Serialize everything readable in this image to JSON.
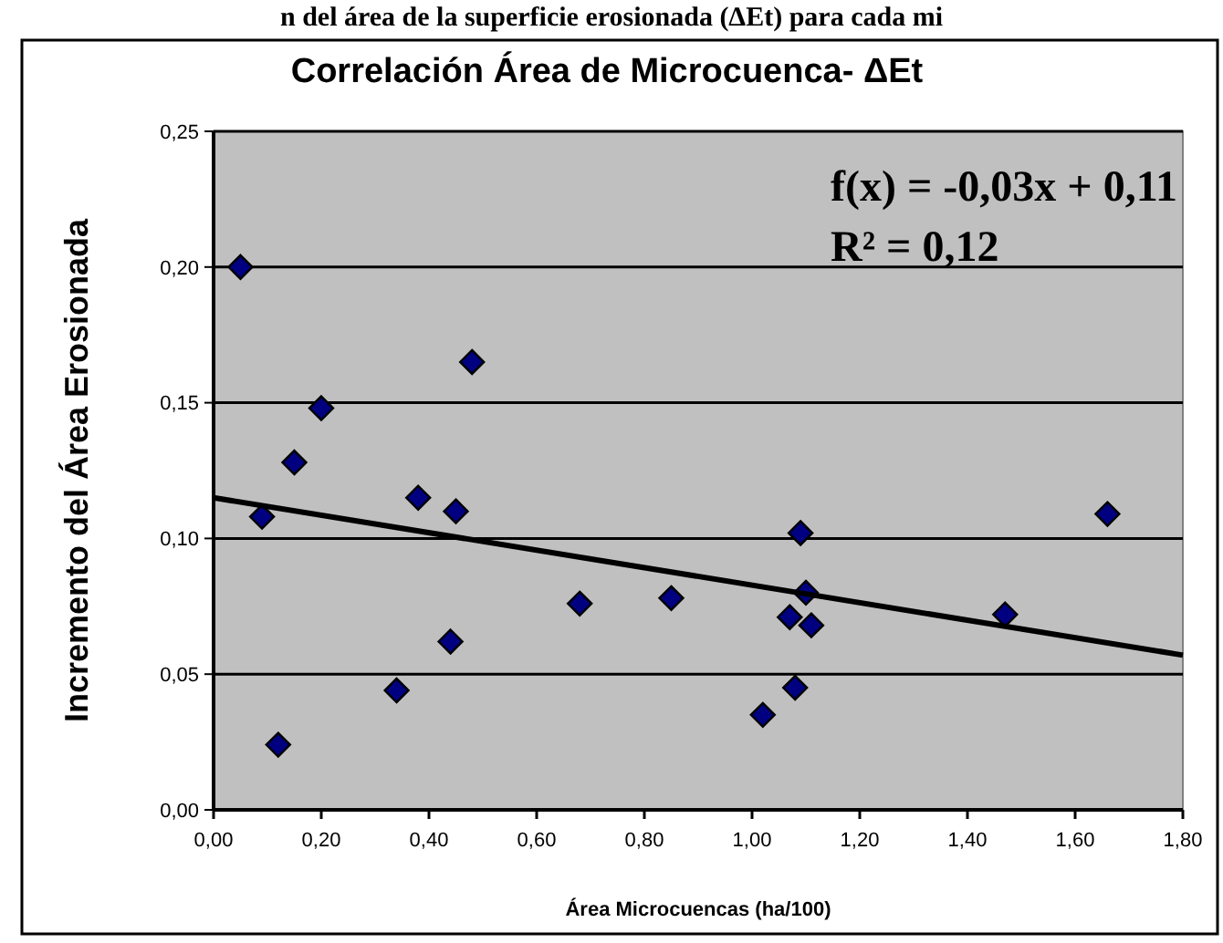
{
  "chart_data": {
    "type": "scatter",
    "title": "Correlación Área de Microcuenca- ΔEt",
    "xlabel": "Área Microcuencas (ha/100)",
    "ylabel": "Incremento del Área Erosionada",
    "annotations": [
      "n del área de la superficie erosionada (ΔEt) para cada mi",
      "f(x) = -0,03x + 0,11",
      "R² = 0,12"
    ],
    "x": [
      0.05,
      0.09,
      0.12,
      0.15,
      0.2,
      0.34,
      0.38,
      0.44,
      0.45,
      0.48,
      0.68,
      0.85,
      1.02,
      1.07,
      1.08,
      1.09,
      1.1,
      1.11,
      1.47,
      1.66
    ],
    "series": [
      {
        "type": "scatter",
        "color": "#000080",
        "marker": "diamond",
        "values": [
          0.2,
          0.108,
          0.024,
          0.128,
          0.148,
          0.044,
          0.115,
          0.062,
          0.11,
          0.165,
          0.076,
          0.078,
          0.035,
          0.071,
          0.045,
          0.102,
          0.08,
          0.068,
          0.072,
          0.109
        ]
      },
      {
        "type": "line",
        "color": "#000000",
        "x": [
          0,
          1.8
        ],
        "values": [
          0.115,
          0.057
        ],
        "line_style": "solid",
        "marker": "none"
      }
    ],
    "xlim": [
      0,
      1.8
    ],
    "ylim": [
      0,
      0.25
    ],
    "xticks": [
      {
        "value": 0,
        "label": "0,00"
      },
      {
        "value": 0.2,
        "label": "0,20"
      },
      {
        "value": 0.4,
        "label": "0,40"
      },
      {
        "value": 0.6,
        "label": "0,60"
      },
      {
        "value": 0.8,
        "label": "0,80"
      },
      {
        "value": 1.0,
        "label": "1,00"
      },
      {
        "value": 1.2,
        "label": "1,20"
      },
      {
        "value": 1.4,
        "label": "1,40"
      },
      {
        "value": 1.6,
        "label": "1,60"
      },
      {
        "value": 1.8,
        "label": "1,80"
      }
    ],
    "yticks": [
      {
        "value": 0,
        "label": "0,00"
      },
      {
        "value": 0.05,
        "label": "0,05"
      },
      {
        "value": 0.1,
        "label": "0,10"
      },
      {
        "value": 0.15,
        "label": "0,15"
      },
      {
        "value": 0.2,
        "label": "0,20"
      },
      {
        "value": 0.25,
        "label": "0,25"
      }
    ],
    "grid": "y"
  }
}
